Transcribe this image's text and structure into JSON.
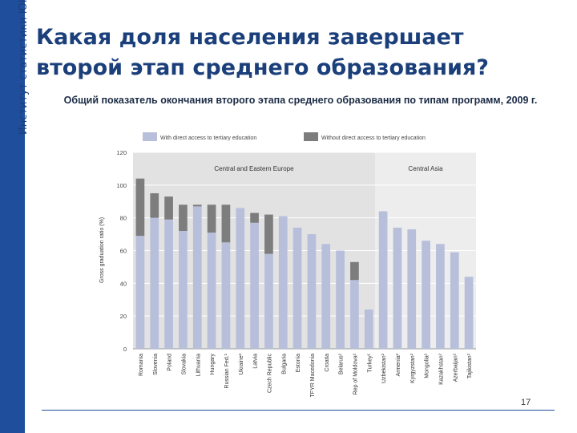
{
  "side_label": "Институт статистики ЮНЕСКО",
  "title_line1": "Какая доля населения завершает",
  "title_line2": "второй этап среднего образования?",
  "subtitle": "Общий показатель окончания второго этапа среднего образования по типам программ, 2009 г.",
  "page_number": "17",
  "colors": {
    "with_access": "#b7bfdb",
    "without_access": "#7d7d7d",
    "panel_cee": "#e2e2e2",
    "panel_ca": "#ededed"
  },
  "chart_data": {
    "type": "bar",
    "stacked": true,
    "ylabel": "Gross graduation ratio (%)",
    "ylim": [
      0,
      120
    ],
    "yticks": [
      0,
      20,
      40,
      60,
      80,
      100,
      120
    ],
    "grid": true,
    "legend_position": "top",
    "series_labels": [
      "With direct access to tertiary education",
      "Without direct access to tertiary education"
    ],
    "region_labels": [
      "Central and Eastern Europe",
      "Central Asia"
    ],
    "region_split_after": 16,
    "categories": [
      "Romania",
      "Slovenia",
      "Poland",
      "Slovakia",
      "Lithuania",
      "Hungary",
      "Russian Fed.¹",
      "Ukraine²",
      "Latvia",
      "Czech Republic",
      "Bulgaria",
      "Estonia",
      "TFYR Macedonia",
      "Croatia",
      "Belarus²",
      "Rep of Moldova²",
      "Turkey¹",
      "Uzbekistan²",
      "Armenia²",
      "Kyrgyzstan²",
      "Mongolia²",
      "Kazakhstan²",
      "Azerbaijan²",
      "Tajikistan²"
    ],
    "series": [
      {
        "name": "With direct access to tertiary education",
        "values": [
          69,
          80,
          79,
          72,
          87,
          71,
          65,
          86,
          77,
          58,
          81,
          74,
          70,
          64,
          60,
          42,
          24,
          84,
          74,
          73,
          66,
          64,
          59,
          44
        ]
      },
      {
        "name": "Without direct access to tertiary education",
        "values": [
          35,
          15,
          14,
          16,
          1,
          17,
          23,
          0,
          6,
          24,
          0,
          0,
          0,
          0,
          0,
          11,
          0,
          0,
          0,
          0,
          0,
          0,
          0,
          0
        ]
      }
    ]
  }
}
